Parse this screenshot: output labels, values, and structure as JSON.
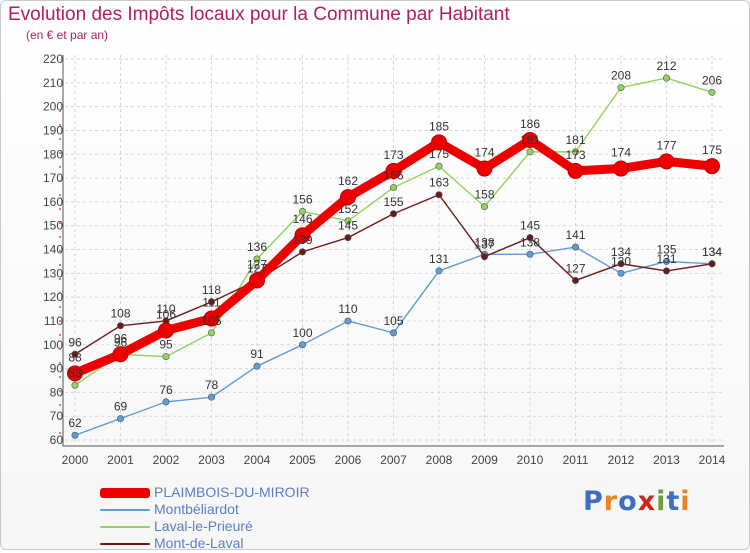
{
  "title": "Evolution des Impôts locaux pour la Commune par Habitant",
  "subtitle": "(en € et par an)",
  "logo": {
    "text": "Proxiti",
    "letters": [
      "P",
      "r",
      "o",
      "x",
      "i",
      "t",
      "i"
    ],
    "colors": [
      "#3e6fbf",
      "#e8842a",
      "#3e6fbf",
      "#c8271b",
      "#6aa03c",
      "#3e6fbf",
      "#e8842a"
    ]
  },
  "chart_data": {
    "type": "line",
    "title": "Evolution des Impôts locaux pour la Commune par Habitant",
    "subtitle": "(en € et par an)",
    "xlabel": "",
    "ylabel": "",
    "ylim": [
      60,
      220
    ],
    "yticks": [
      60,
      70,
      80,
      90,
      100,
      110,
      120,
      130,
      140,
      150,
      160,
      170,
      180,
      190,
      200,
      210,
      220
    ],
    "grid": true,
    "legend_position": "bottom-left",
    "x": [
      "2000",
      "2001",
      "2002",
      "2003",
      "2004",
      "2005",
      "2006",
      "2007",
      "2008",
      "2009",
      "2010",
      "2011",
      "2012",
      "2013",
      "2014"
    ],
    "series": [
      {
        "name": "PLAIMBOIS-DU-MIROIR",
        "color": "#ee0000",
        "values": [
          88,
          96,
          106,
          111,
          127,
          146,
          162,
          173,
          185,
          174,
          186,
          173,
          174,
          177,
          175
        ]
      },
      {
        "name": "Montbéliardot",
        "color": "#5f9bd4",
        "values": [
          62,
          69,
          76,
          78,
          91,
          100,
          110,
          105,
          131,
          138,
          138,
          141,
          130,
          135,
          134
        ]
      },
      {
        "name": "Laval-le-Prieuré",
        "color": "#8fd45c",
        "values": [
          83,
          96,
          95,
          105,
          136,
          156,
          152,
          166,
          175,
          158,
          181,
          181,
          208,
          212,
          206
        ]
      },
      {
        "name": "Mont-de-Laval",
        "color": "#6b1a1a",
        "values": [
          96,
          108,
          110,
          118,
          127,
          139,
          145,
          155,
          163,
          137,
          145,
          127,
          134,
          131,
          134
        ]
      }
    ]
  }
}
